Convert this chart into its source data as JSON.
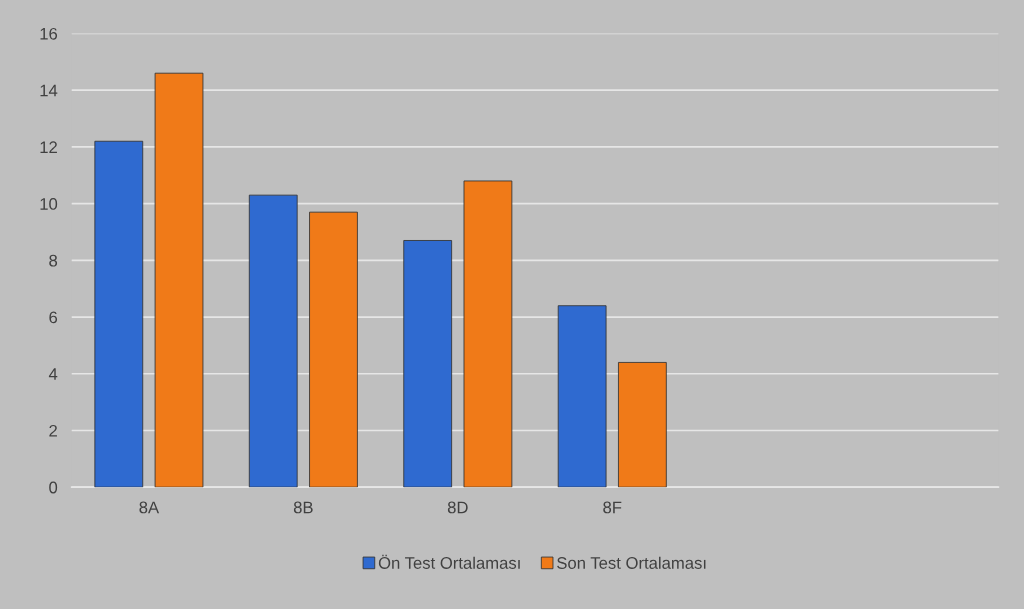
{
  "chart_data": {
    "type": "bar",
    "categories": [
      "8A",
      "8B",
      "8D",
      "8F",
      null,
      null
    ],
    "series": [
      {
        "name": "Ön Test Ortalaması",
        "color": "#2f6ad0",
        "values": [
          12.2,
          10.3,
          8.7,
          6.4,
          null,
          null
        ]
      },
      {
        "name": "Son Test Ortalaması",
        "color": "#f07a18",
        "values": [
          14.6,
          9.7,
          10.8,
          4.4,
          null,
          null
        ]
      }
    ],
    "ylim": [
      0,
      16
    ],
    "yticks": [
      0,
      2,
      4,
      6,
      8,
      10,
      12,
      14,
      16
    ],
    "grid": "y",
    "legend": "bottom"
  }
}
